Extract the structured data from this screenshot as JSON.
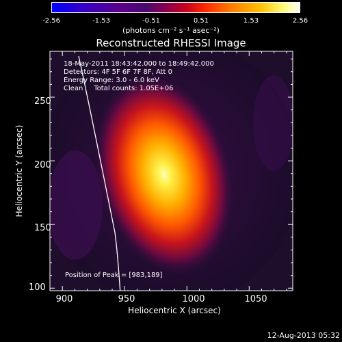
{
  "colorbar": {
    "ticks": [
      "-2.56",
      "-1.53",
      "-0.51",
      "0.51",
      "1.53",
      "2.56"
    ],
    "units": "(photons cm⁻² s⁻¹ asec⁻²)"
  },
  "chart_data": {
    "type": "heatmap",
    "title": "Reconstructed RHESSI Image",
    "xlabel": "Heliocentric X (arcsec)",
    "ylabel": "Heliocentric Y (arcsec)",
    "xlim": [
      890,
      1085
    ],
    "ylim": [
      98,
      286
    ],
    "x_ticks": [
      "900",
      "950",
      "1000",
      "1050"
    ],
    "y_ticks": [
      "100",
      "150",
      "200",
      "250"
    ],
    "peak": [
      983,
      189
    ],
    "colorscale_range": [
      -2.56,
      2.56
    ],
    "annotations": [
      "18-May-2011 18:43:42.000 to 18:49:42.000",
      "Detectors: 4F 5F 6F 7F 8F, Att 0",
      "Energy Range: 3.0 - 6.0 keV",
      "Clean     Total counts: 1.05E+06"
    ],
    "peak_label": "Position of Peak = [983,189]"
  },
  "timestamp": "12-Aug-2013 05:32"
}
